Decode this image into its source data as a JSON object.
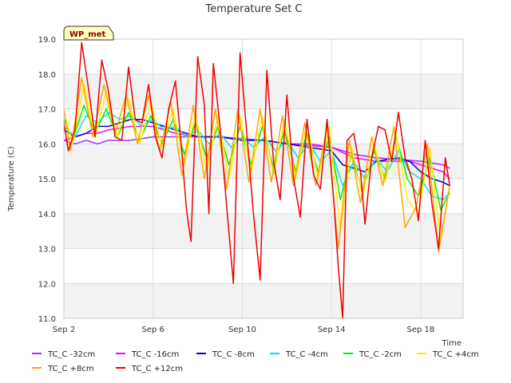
{
  "chart_data": {
    "type": "line",
    "title": "Temperature Set C",
    "xlabel": "Time",
    "ylabel": "Temperature (C)",
    "badge": "WP_met",
    "xlim": [
      2,
      19.9
    ],
    "ylim": [
      11.0,
      19.0
    ],
    "x_ticks": [
      2,
      6,
      10,
      14,
      18
    ],
    "x_tick_labels": [
      "Sep 2",
      "Sep 6",
      "Sep 10",
      "Sep 14",
      "Sep 18"
    ],
    "y_ticks": [
      11,
      12,
      13,
      14,
      15,
      16,
      17,
      18,
      19
    ],
    "y_tick_labels": [
      "11.0",
      "12.0",
      "13.0",
      "14.0",
      "15.0",
      "16.0",
      "17.0",
      "18.0",
      "19.0"
    ],
    "grid": true,
    "legend_position": "bottom",
    "series": [
      {
        "name": "TC_C -32cm",
        "color": "#9b30ff",
        "x": [
          2.0,
          2.5,
          3.0,
          3.5,
          4.0,
          5.0,
          6.0,
          7.0,
          8.0,
          9.0,
          10.0,
          11.0,
          12.0,
          13.0,
          14.0,
          14.5,
          15.0,
          16.0,
          17.0,
          18.0,
          19.0,
          19.3
        ],
        "y": [
          16.1,
          16.0,
          16.1,
          16.0,
          16.1,
          16.1,
          16.2,
          16.2,
          16.2,
          16.2,
          16.15,
          16.1,
          16.0,
          15.95,
          15.9,
          15.8,
          15.7,
          15.6,
          15.55,
          15.5,
          15.4,
          15.3
        ]
      },
      {
        "name": "TC_C -16cm",
        "color": "#ff00ff",
        "x": [
          2.0,
          2.5,
          3.0,
          3.5,
          4.0,
          5.0,
          6.0,
          7.0,
          8.0,
          9.0,
          10.0,
          11.0,
          12.0,
          13.0,
          14.0,
          14.5,
          15.0,
          16.0,
          17.0,
          17.5,
          18.0,
          18.5,
          19.0,
          19.3
        ],
        "y": [
          16.1,
          16.2,
          16.3,
          16.3,
          16.4,
          16.5,
          16.5,
          16.3,
          16.2,
          16.2,
          16.1,
          16.1,
          16.0,
          16.0,
          15.9,
          15.75,
          15.6,
          15.5,
          15.5,
          15.5,
          15.4,
          15.3,
          15.2,
          15.0
        ]
      },
      {
        "name": "TC_C -8cm",
        "color": "#0000cd",
        "x": [
          2.0,
          2.5,
          3.0,
          3.5,
          4.0,
          4.5,
          5.0,
          5.5,
          6.0,
          6.5,
          7.0,
          7.5,
          8.0,
          9.0,
          10.0,
          11.0,
          12.0,
          13.0,
          14.0,
          14.5,
          15.0,
          15.5,
          16.0,
          17.0,
          17.5,
          18.0,
          18.5,
          19.0,
          19.3
        ],
        "y": [
          16.4,
          16.2,
          16.3,
          16.5,
          16.5,
          16.6,
          16.7,
          16.7,
          16.6,
          16.5,
          16.4,
          16.3,
          16.2,
          16.2,
          16.1,
          16.1,
          16.0,
          15.9,
          15.8,
          15.4,
          15.3,
          15.2,
          15.5,
          15.6,
          15.5,
          15.2,
          15.0,
          14.9,
          14.8
        ]
      },
      {
        "name": "TC_C -4cm",
        "color": "#00e5ee",
        "x": [
          2.0,
          2.5,
          3.0,
          3.5,
          4.0,
          4.5,
          5.0,
          5.5,
          6.0,
          6.5,
          7.0,
          7.5,
          8.0,
          8.5,
          9.0,
          9.5,
          10.0,
          10.5,
          11.0,
          11.5,
          12.0,
          12.5,
          13.0,
          13.5,
          14.0,
          14.5,
          15.0,
          15.5,
          16.0,
          16.5,
          17.0,
          17.5,
          18.0,
          18.5,
          19.0,
          19.3
        ],
        "y": [
          16.5,
          16.2,
          16.8,
          16.6,
          16.9,
          16.7,
          16.8,
          16.5,
          16.7,
          16.4,
          16.5,
          16.2,
          16.4,
          16.0,
          16.3,
          15.9,
          16.2,
          15.9,
          16.2,
          15.8,
          16.1,
          15.6,
          16.0,
          15.5,
          15.8,
          14.8,
          15.5,
          15.0,
          15.6,
          15.2,
          15.8,
          15.2,
          15.0,
          14.5,
          14.4,
          14.6
        ]
      },
      {
        "name": "TC_C -2cm",
        "color": "#00ee00",
        "x": [
          2.0,
          2.4,
          2.9,
          3.4,
          3.9,
          4.4,
          4.9,
          5.4,
          5.9,
          6.4,
          6.9,
          7.4,
          7.9,
          8.4,
          8.9,
          9.4,
          9.9,
          10.4,
          10.9,
          11.4,
          11.9,
          12.4,
          12.9,
          13.4,
          13.9,
          14.4,
          14.9,
          15.4,
          15.9,
          16.4,
          16.9,
          17.4,
          17.9,
          18.4,
          18.9,
          19.3
        ],
        "y": [
          16.7,
          16.1,
          17.1,
          16.3,
          17.0,
          16.2,
          16.9,
          16.1,
          16.8,
          16.0,
          16.7,
          15.7,
          16.6,
          15.6,
          16.5,
          15.4,
          16.5,
          15.4,
          16.5,
          15.3,
          16.4,
          15.2,
          16.3,
          15.2,
          16.2,
          14.4,
          15.7,
          14.6,
          15.8,
          15.0,
          16.2,
          15.0,
          14.5,
          15.6,
          14.1,
          14.6
        ]
      },
      {
        "name": "TC_C +4cm",
        "color": "#ffee00",
        "x": [
          2.0,
          2.4,
          2.9,
          3.4,
          3.9,
          4.4,
          4.9,
          5.4,
          5.9,
          6.4,
          6.9,
          7.4,
          7.9,
          8.4,
          8.9,
          9.4,
          9.9,
          10.4,
          10.9,
          11.4,
          11.9,
          12.4,
          12.9,
          13.4,
          13.9,
          14.4,
          14.9,
          15.4,
          15.9,
          16.4,
          16.9,
          17.4,
          17.9,
          18.4,
          18.9,
          19.3
        ],
        "y": [
          16.9,
          16.0,
          17.7,
          16.2,
          17.5,
          16.2,
          17.3,
          16.0,
          17.2,
          15.9,
          17.0,
          15.4,
          16.9,
          15.2,
          16.8,
          15.0,
          16.8,
          15.2,
          16.8,
          15.1,
          16.7,
          15.0,
          16.6,
          15.0,
          16.5,
          13.5,
          15.9,
          14.5,
          16.0,
          14.9,
          16.3,
          14.4,
          14.0,
          15.9,
          13.2,
          14.8
        ]
      },
      {
        "name": "TC_C +8cm",
        "color": "#ffa500",
        "x": [
          2.0,
          2.3,
          2.8,
          3.3,
          3.8,
          4.3,
          4.8,
          5.3,
          5.8,
          6.3,
          6.8,
          7.3,
          7.8,
          8.3,
          8.8,
          9.3,
          9.8,
          10.3,
          10.8,
          11.3,
          11.8,
          12.3,
          12.8,
          13.3,
          13.8,
          14.3,
          14.8,
          15.3,
          15.8,
          16.3,
          16.8,
          17.3,
          17.8,
          18.3,
          18.8,
          19.3
        ],
        "y": [
          17.0,
          15.8,
          17.9,
          16.2,
          17.7,
          16.3,
          17.4,
          16.0,
          17.4,
          15.8,
          17.2,
          15.1,
          17.1,
          15.0,
          17.0,
          14.7,
          17.0,
          14.9,
          17.0,
          14.9,
          16.8,
          14.8,
          16.6,
          14.8,
          16.5,
          13.0,
          16.1,
          14.3,
          16.2,
          14.8,
          16.5,
          13.6,
          14.2,
          16.0,
          12.9,
          14.8
        ]
      },
      {
        "name": "TC_C +12cm",
        "color": "#ee0000",
        "x": [
          2.0,
          2.2,
          2.5,
          2.8,
          3.1,
          3.4,
          3.7,
          4.0,
          4.3,
          4.6,
          4.9,
          5.2,
          5.5,
          5.8,
          6.1,
          6.4,
          6.7,
          7.0,
          7.3,
          7.5,
          7.7,
          8.0,
          8.3,
          8.5,
          8.7,
          9.0,
          9.3,
          9.6,
          9.9,
          10.2,
          10.5,
          10.8,
          11.1,
          11.4,
          11.7,
          12.0,
          12.3,
          12.6,
          12.9,
          13.2,
          13.5,
          13.8,
          14.1,
          14.3,
          14.5,
          14.7,
          15.0,
          15.3,
          15.5,
          15.8,
          16.1,
          16.4,
          16.7,
          17.0,
          17.3,
          17.6,
          17.9,
          18.2,
          18.5,
          18.8,
          19.1,
          19.3
        ],
        "y": [
          16.6,
          15.8,
          16.4,
          18.9,
          17.6,
          16.2,
          18.4,
          17.5,
          16.2,
          16.1,
          18.2,
          16.7,
          16.6,
          17.7,
          16.2,
          15.6,
          17.0,
          17.8,
          15.7,
          14.1,
          13.2,
          18.5,
          17.1,
          14.0,
          18.3,
          16.5,
          14.2,
          12.0,
          18.6,
          16.3,
          14.0,
          12.1,
          18.1,
          15.5,
          14.4,
          17.4,
          15.0,
          13.9,
          16.7,
          15.1,
          14.7,
          16.7,
          14.4,
          12.5,
          11.0,
          16.1,
          16.3,
          15.2,
          13.7,
          15.6,
          16.5,
          16.4,
          15.5,
          16.9,
          15.6,
          15.0,
          13.8,
          16.1,
          14.3,
          13.0,
          15.6,
          14.8
        ]
      }
    ]
  }
}
